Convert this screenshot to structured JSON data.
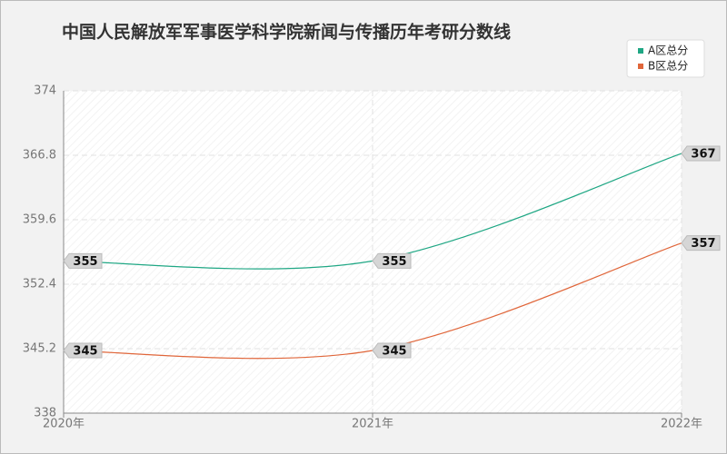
{
  "chart_data": {
    "type": "line",
    "title": "中国人民解放军军事医学科学院新闻与传播历年考研分数线",
    "categories": [
      "2020年",
      "2021年",
      "2022年"
    ],
    "series": [
      {
        "name": "A区总分",
        "color": "#1fa784",
        "values": [
          355,
          355,
          367
        ]
      },
      {
        "name": "B区总分",
        "color": "#e0663a",
        "values": [
          345,
          345,
          357
        ]
      }
    ],
    "ylim": [
      338,
      374
    ],
    "yticks": [
      338,
      345.2,
      352.4,
      359.6,
      366.8,
      374
    ],
    "grid": true,
    "smooth": true,
    "legend_position": "top-right"
  }
}
